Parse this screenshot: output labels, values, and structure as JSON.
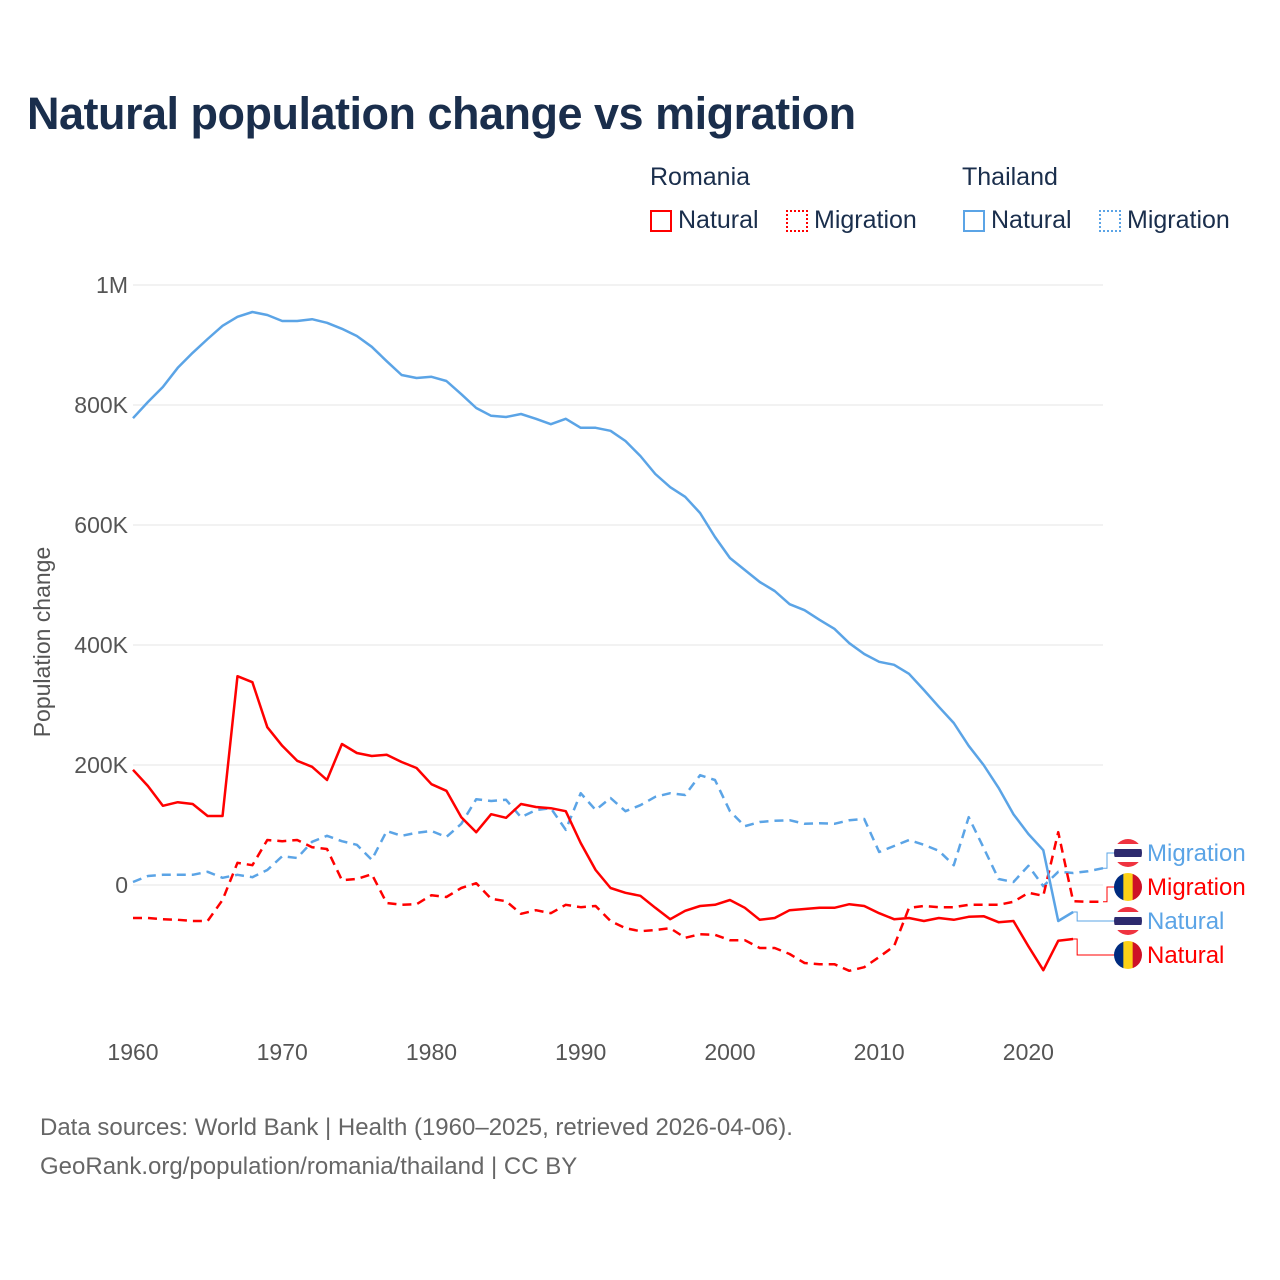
{
  "title": "Natural population change vs migration",
  "legend": {
    "groups": [
      {
        "name": "Romania",
        "color": "#ff0000",
        "items": [
          "Natural",
          "Migration"
        ]
      },
      {
        "name": "Thailand",
        "color": "#5ba4e6",
        "items": [
          "Natural",
          "Migration"
        ]
      }
    ]
  },
  "footer": {
    "line1": "Data sources: World Bank | Health (1960–2025, retrieved 2026-04-06).",
    "line2": "GeoRank.org/population/romania/thailand | CC BY"
  },
  "chart_data": {
    "type": "line",
    "title": "Natural population change vs migration",
    "xlabel": "",
    "ylabel": "Population change",
    "xlim": [
      1960,
      2025
    ],
    "ylim": [
      -200000,
      1000000
    ],
    "x_ticks": [
      1960,
      1970,
      1980,
      1990,
      2000,
      2010,
      2020
    ],
    "x_tick_labels": [
      "1960",
      "1970",
      "1980",
      "1990",
      "2000",
      "2010",
      "2020"
    ],
    "y_ticks": [
      0,
      200000,
      400000,
      600000,
      800000,
      1000000
    ],
    "y_tick_labels": [
      "0",
      "200K",
      "400K",
      "600K",
      "800K",
      "1M"
    ],
    "grid": true,
    "legend_position": "top-right",
    "series": [
      {
        "name": "Thailand Natural",
        "end_label": "Natural",
        "color": "#5ba4e6",
        "dash": false,
        "start_year": 1960,
        "values_k": [
          778,
          805,
          830,
          862,
          887,
          910,
          932,
          947,
          955,
          950,
          940,
          940,
          943,
          937,
          927,
          915,
          897,
          873,
          850,
          845,
          847,
          840,
          818,
          795,
          782,
          780,
          785,
          777,
          768,
          777,
          762,
          762,
          757,
          740,
          715,
          685,
          663,
          647,
          620,
          580,
          545,
          525,
          505,
          490,
          468,
          458,
          442,
          427,
          403,
          385,
          372,
          367,
          352,
          325,
          297,
          270,
          232,
          200,
          162,
          118,
          85,
          58,
          -60,
          -45
        ]
      },
      {
        "name": "Thailand Migration",
        "end_label": "Migration",
        "color": "#5ba4e6",
        "dash": true,
        "start_year": 1960,
        "values_k": [
          5,
          15,
          17,
          17,
          17,
          22,
          12,
          17,
          13,
          25,
          48,
          45,
          72,
          82,
          73,
          67,
          42,
          90,
          82,
          87,
          90,
          80,
          102,
          143,
          140,
          142,
          113,
          125,
          128,
          92,
          153,
          125,
          145,
          123,
          133,
          147,
          153,
          150,
          183,
          175,
          123,
          98,
          105,
          107,
          108,
          102,
          103,
          102,
          108,
          110,
          55,
          65,
          75,
          67,
          57,
          33,
          113,
          62,
          10,
          5,
          32,
          -2,
          22,
          20,
          23,
          28
        ]
      },
      {
        "name": "Romania Natural",
        "end_label": "Natural",
        "color": "#ff0000",
        "dash": false,
        "start_year": 1960,
        "values_k": [
          192,
          165,
          132,
          138,
          135,
          115,
          115,
          348,
          338,
          263,
          232,
          207,
          197,
          175,
          235,
          220,
          215,
          217,
          205,
          195,
          168,
          157,
          113,
          88,
          118,
          112,
          135,
          130,
          128,
          123,
          70,
          25,
          -5,
          -13,
          -18,
          -38,
          -57,
          -43,
          -35,
          -33,
          -25,
          -38,
          -58,
          -55,
          -42,
          -40,
          -38,
          -38,
          -32,
          -35,
          -47,
          -57,
          -55,
          -60,
          -55,
          -58,
          -53,
          -52,
          -62,
          -60,
          -102,
          -142,
          -93,
          -90
        ]
      },
      {
        "name": "Romania Migration",
        "end_label": "Migration",
        "color": "#ff0000",
        "dash": true,
        "start_year": 1960,
        "values_k": [
          -55,
          -55,
          -57,
          -58,
          -60,
          -60,
          -25,
          37,
          33,
          75,
          73,
          75,
          63,
          60,
          8,
          10,
          18,
          -30,
          -33,
          -32,
          -17,
          -20,
          -5,
          3,
          -23,
          -27,
          -48,
          -42,
          -47,
          -33,
          -37,
          -35,
          -60,
          -72,
          -77,
          -75,
          -72,
          -88,
          -82,
          -83,
          -92,
          -92,
          -105,
          -105,
          -115,
          -130,
          -132,
          -132,
          -143,
          -137,
          -120,
          -102,
          -38,
          -35,
          -37,
          -37,
          -33,
          -33,
          -33,
          -28,
          -13,
          -18,
          88,
          -27,
          -28,
          -28
        ]
      }
    ]
  }
}
